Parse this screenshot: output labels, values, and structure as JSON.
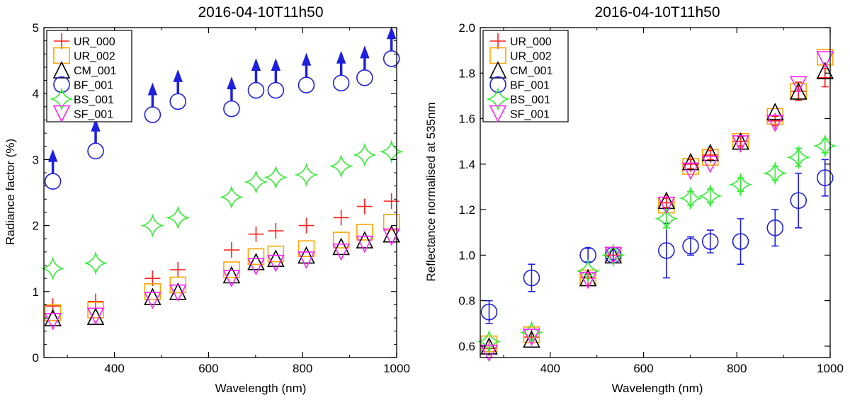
{
  "chart_data": [
    {
      "type": "scatter",
      "title": "2016-04-10T11h50",
      "xlabel": "Wavelength (nm)",
      "ylabel": "Radiance factor (%)",
      "xlim": [
        250,
        1000
      ],
      "ylim": [
        0,
        5
      ],
      "xticks": [
        400,
        600,
        800,
        1000
      ],
      "yticks": [
        0,
        1,
        2,
        3,
        4,
        5
      ],
      "ytick_labels": [
        "0",
        "1",
        "2",
        "3",
        "4",
        "5"
      ],
      "legend_position": "top-left",
      "series": [
        {
          "name": "UR_000",
          "marker": "plus",
          "color": "#ff2020",
          "x": [
            269,
            360,
            481,
            535,
            649,
            701,
            743,
            808,
            882,
            932,
            989
          ],
          "y": [
            0.78,
            0.85,
            1.2,
            1.33,
            1.63,
            1.87,
            1.92,
            2.0,
            2.12,
            2.29,
            2.37
          ]
        },
        {
          "name": "UR_002",
          "marker": "square",
          "color": "#ffa500",
          "x": [
            269,
            360,
            481,
            535,
            649,
            701,
            743,
            808,
            882,
            932,
            989
          ],
          "y": [
            0.68,
            0.72,
            1.0,
            1.1,
            1.33,
            1.53,
            1.57,
            1.65,
            1.78,
            1.9,
            2.05
          ]
        },
        {
          "name": "CM_001",
          "marker": "triangle-up",
          "color": "#000000",
          "x": [
            269,
            360,
            481,
            535,
            649,
            701,
            743,
            808,
            882,
            932,
            989
          ],
          "y": [
            0.6,
            0.62,
            0.92,
            1.0,
            1.25,
            1.45,
            1.5,
            1.55,
            1.68,
            1.78,
            1.87
          ]
        },
        {
          "name": "BF_001",
          "marker": "circle",
          "color": "#1f1fe0",
          "x": [
            269,
            360,
            481,
            535,
            649,
            701,
            743,
            808,
            882,
            932,
            989
          ],
          "y": [
            2.67,
            3.13,
            3.68,
            3.88,
            3.77,
            4.05,
            4.05,
            4.13,
            4.16,
            4.24,
            4.53
          ],
          "lower_limit_arrows": true
        },
        {
          "name": "BS_001",
          "marker": "star4",
          "color": "#33ee33",
          "x": [
            269,
            360,
            481,
            535,
            649,
            701,
            743,
            808,
            882,
            932,
            989
          ],
          "y": [
            1.35,
            1.43,
            2.0,
            2.12,
            2.43,
            2.66,
            2.73,
            2.77,
            2.9,
            3.07,
            3.12
          ]
        },
        {
          "name": "SF_001",
          "marker": "triangle-down",
          "color": "#ff20ff",
          "x": [
            269,
            360,
            481,
            535,
            649,
            701,
            743,
            808,
            882,
            932,
            989
          ],
          "y": [
            0.55,
            0.63,
            0.87,
            0.98,
            1.2,
            1.38,
            1.43,
            1.48,
            1.6,
            1.72,
            1.83
          ]
        }
      ]
    },
    {
      "type": "scatter",
      "title": "2016-04-10T11h50",
      "xlabel": "Wavelength (nm)",
      "ylabel": "Reflectance normalised at 535nm",
      "xlim": [
        250,
        1000
      ],
      "ylim": [
        0.55,
        2.0
      ],
      "xticks": [
        400,
        600,
        800,
        1000
      ],
      "yticks": [
        0.6,
        0.8,
        1.0,
        1.2,
        1.4,
        1.6,
        1.8,
        2.0
      ],
      "ytick_labels": [
        "0.6",
        "0.8",
        "1.0",
        "1.2",
        "1.4",
        "1.6",
        "1.8",
        "2.0"
      ],
      "legend_position": "top-left",
      "series": [
        {
          "name": "UR_000",
          "marker": "plus",
          "color": "#ff2020",
          "x": [
            269,
            360,
            481,
            535,
            649,
            701,
            743,
            808,
            882,
            932,
            989
          ],
          "y": [
            0.59,
            0.64,
            0.9,
            1.0,
            1.23,
            1.4,
            1.44,
            1.5,
            1.59,
            1.72,
            1.78
          ],
          "err": [
            0,
            0,
            0,
            0,
            0.02,
            0.02,
            0.02,
            0.02,
            0.02,
            0.04,
            0.04
          ]
        },
        {
          "name": "UR_002",
          "marker": "square",
          "color": "#ffa500",
          "x": [
            269,
            360,
            481,
            535,
            649,
            701,
            743,
            808,
            882,
            932,
            989
          ],
          "y": [
            0.61,
            0.65,
            0.9,
            1.0,
            1.22,
            1.39,
            1.43,
            1.5,
            1.61,
            1.72,
            1.87
          ],
          "err": [
            0,
            0,
            0,
            0,
            0,
            0,
            0,
            0,
            0,
            0,
            0
          ]
        },
        {
          "name": "CM_001",
          "marker": "triangle-up",
          "color": "#000000",
          "x": [
            269,
            360,
            481,
            535,
            649,
            701,
            743,
            808,
            882,
            932,
            989
          ],
          "y": [
            0.6,
            0.63,
            0.9,
            1.0,
            1.24,
            1.41,
            1.45,
            1.5,
            1.63,
            1.72,
            1.81
          ],
          "err": [
            0,
            0,
            0,
            0,
            0,
            0,
            0,
            0,
            0,
            0,
            0
          ]
        },
        {
          "name": "BF_001",
          "marker": "circle",
          "color": "#1f1fe0",
          "x": [
            269,
            360,
            481,
            535,
            649,
            701,
            743,
            808,
            882,
            932,
            989
          ],
          "y": [
            0.75,
            0.9,
            1.0,
            1.0,
            1.02,
            1.04,
            1.06,
            1.06,
            1.12,
            1.24,
            1.34
          ],
          "err": [
            0.05,
            0.06,
            0.03,
            0.02,
            0.12,
            0.04,
            0.05,
            0.1,
            0.08,
            0.12,
            0.08
          ]
        },
        {
          "name": "BS_001",
          "marker": "star4",
          "color": "#33ee33",
          "x": [
            269,
            360,
            481,
            535,
            649,
            701,
            743,
            808,
            882,
            932,
            989
          ],
          "y": [
            0.62,
            0.66,
            0.93,
            1.0,
            1.16,
            1.25,
            1.26,
            1.31,
            1.36,
            1.43,
            1.48
          ],
          "err": [
            0,
            0,
            0,
            0,
            0.04,
            0.03,
            0.03,
            0.03,
            0.03,
            0.04,
            0.03
          ]
        },
        {
          "name": "SF_001",
          "marker": "triangle-down",
          "color": "#ff20ff",
          "x": [
            269,
            360,
            481,
            535,
            649,
            701,
            743,
            808,
            882,
            932,
            989
          ],
          "y": [
            0.57,
            0.64,
            0.89,
            1.0,
            1.22,
            1.37,
            1.4,
            1.49,
            1.58,
            1.75,
            1.86
          ],
          "err": [
            0,
            0,
            0,
            0,
            0,
            0,
            0,
            0,
            0,
            0,
            0
          ]
        }
      ]
    }
  ]
}
